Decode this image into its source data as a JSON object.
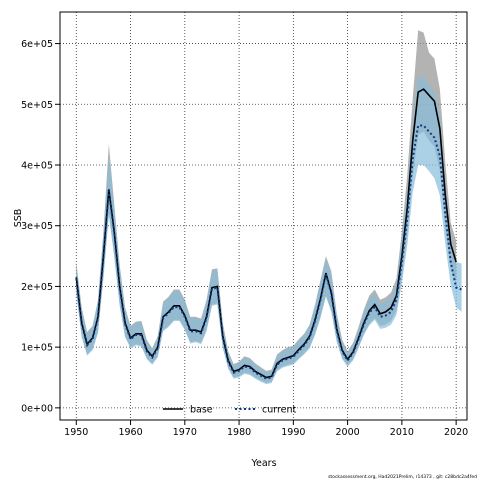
{
  "chart_data": {
    "type": "line",
    "xlabel": "Years",
    "ylabel": "SSB",
    "xlim": [
      1947,
      2022
    ],
    "ylim": [
      -20000,
      652000
    ],
    "x_ticks": [
      1950,
      1960,
      1970,
      1980,
      1990,
      2000,
      2010,
      2020
    ],
    "x_tick_labels": [
      "1950",
      "1960",
      "1970",
      "1980",
      "1990",
      "2000",
      "2010",
      "2020"
    ],
    "y_ticks": [
      0,
      100000,
      200000,
      300000,
      400000,
      500000,
      600000
    ],
    "y_tick_labels": [
      "0e+00",
      "1e+05",
      "2e+05",
      "3e+05",
      "4e+05",
      "5e+05",
      "6e+05"
    ],
    "grid": true,
    "legend_position": "bottom-center",
    "footer_text": "stockassessment.org, Had2021Prelim, r14373 ,  git: c28bdc2a4fed",
    "series": [
      {
        "name": "base",
        "color": "#000000",
        "line_style": "solid",
        "band_color": "#999999",
        "x": [
          1950,
          1951,
          1952,
          1953,
          1954,
          1955,
          1956,
          1957,
          1958,
          1959,
          1960,
          1961,
          1962,
          1963,
          1964,
          1965,
          1966,
          1967,
          1968,
          1969,
          1970,
          1971,
          1972,
          1973,
          1974,
          1975,
          1976,
          1977,
          1978,
          1979,
          1980,
          1981,
          1982,
          1983,
          1984,
          1985,
          1986,
          1987,
          1988,
          1989,
          1990,
          1991,
          1992,
          1993,
          1994,
          1995,
          1996,
          1997,
          1998,
          1999,
          2000,
          2001,
          2002,
          2003,
          2004,
          2005,
          2006,
          2007,
          2008,
          2009,
          2010,
          2011,
          2012,
          2013,
          2014,
          2015,
          2016,
          2017,
          2018,
          2019,
          2020
        ],
        "y": [
          215000,
          140000,
          105000,
          115000,
          150000,
          250000,
          360000,
          290000,
          200000,
          140000,
          115000,
          122000,
          122000,
          95000,
          85000,
          100000,
          150000,
          158000,
          168000,
          168000,
          152000,
          128000,
          128000,
          125000,
          150000,
          198000,
          200000,
          118000,
          78000,
          60000,
          63000,
          70000,
          68000,
          60000,
          55000,
          50000,
          52000,
          73000,
          80000,
          83000,
          86000,
          96000,
          105000,
          118000,
          145000,
          180000,
          222000,
          190000,
          130000,
          95000,
          80000,
          92000,
          115000,
          140000,
          160000,
          170000,
          155000,
          158000,
          165000,
          185000,
          250000,
          330000,
          440000,
          520000,
          525000,
          515000,
          505000,
          460000,
          350000,
          270000,
          240000
        ],
        "lower": [
          190000,
          118000,
          88000,
          97000,
          125000,
          215000,
          320000,
          250000,
          170000,
          118000,
          100000,
          105000,
          103000,
          82000,
          73000,
          85000,
          128000,
          135000,
          145000,
          145000,
          130000,
          108000,
          110000,
          107000,
          128000,
          170000,
          172000,
          100000,
          66000,
          50000,
          52000,
          58000,
          56000,
          50000,
          45000,
          41000,
          43000,
          62000,
          68000,
          71000,
          73000,
          82000,
          90000,
          100000,
          122000,
          150000,
          185000,
          160000,
          110000,
          82000,
          70000,
          80000,
          100000,
          122000,
          138000,
          148000,
          135000,
          137000,
          143000,
          160000,
          215000,
          285000,
          380000,
          450000,
          455000,
          440000,
          430000,
          390000,
          295000,
          228000,
          205000
        ],
        "upper": [
          240000,
          165000,
          125000,
          135000,
          178000,
          290000,
          435000,
          335000,
          235000,
          165000,
          135000,
          142000,
          143000,
          112000,
          98000,
          118000,
          175000,
          183000,
          195000,
          195000,
          178000,
          150000,
          150000,
          147000,
          178000,
          228000,
          230000,
          140000,
          93000,
          72000,
          76000,
          85000,
          82000,
          73000,
          67000,
          61000,
          63000,
          88000,
          95000,
          100000,
          102000,
          113000,
          122000,
          137000,
          170000,
          210000,
          250000,
          225000,
          155000,
          112000,
          93000,
          107000,
          133000,
          162000,
          185000,
          195000,
          178000,
          182000,
          190000,
          213000,
          290000,
          385000,
          510000,
          622000,
          618000,
          585000,
          575000,
          525000,
          405000,
          305000,
          275000
        ]
      },
      {
        "name": "current",
        "color": "#0f3a80",
        "line_style": "dotted",
        "band_color": "#87bedd",
        "x": [
          1950,
          1951,
          1952,
          1953,
          1954,
          1955,
          1956,
          1957,
          1958,
          1959,
          1960,
          1961,
          1962,
          1963,
          1964,
          1965,
          1966,
          1967,
          1968,
          1969,
          1970,
          1971,
          1972,
          1973,
          1974,
          1975,
          1976,
          1977,
          1978,
          1979,
          1980,
          1981,
          1982,
          1983,
          1984,
          1985,
          1986,
          1987,
          1988,
          1989,
          1990,
          1991,
          1992,
          1993,
          1994,
          1995,
          1996,
          1997,
          1998,
          1999,
          2000,
          2001,
          2002,
          2003,
          2004,
          2005,
          2006,
          2007,
          2008,
          2009,
          2010,
          2011,
          2012,
          2013,
          2014,
          2015,
          2016,
          2017,
          2018,
          2019,
          2020,
          2021
        ],
        "y": [
          213000,
          138000,
          103000,
          113000,
          148000,
          248000,
          358000,
          288000,
          198000,
          138000,
          113000,
          120000,
          120000,
          93000,
          83000,
          98000,
          148000,
          156000,
          166000,
          166000,
          150000,
          126000,
          126000,
          123000,
          148000,
          196000,
          198000,
          116000,
          76000,
          58000,
          61000,
          68000,
          66000,
          58000,
          53000,
          48000,
          50000,
          71000,
          78000,
          81000,
          84000,
          94000,
          103000,
          116000,
          143000,
          178000,
          220000,
          188000,
          128000,
          93000,
          78000,
          90000,
          113000,
          138000,
          157000,
          166000,
          150000,
          152000,
          158000,
          178000,
          240000,
          312000,
          410000,
          465000,
          465000,
          455000,
          445000,
          415000,
          320000,
          240000,
          198000,
          195000
        ],
        "lower": [
          188000,
          116000,
          86000,
          95000,
          123000,
          213000,
          318000,
          248000,
          168000,
          116000,
          98000,
          103000,
          101000,
          80000,
          71000,
          83000,
          126000,
          133000,
          143000,
          143000,
          128000,
          106000,
          108000,
          105000,
          126000,
          168000,
          170000,
          98000,
          64000,
          48000,
          50000,
          56000,
          54000,
          48000,
          43000,
          39000,
          41000,
          60000,
          66000,
          69000,
          71000,
          80000,
          88000,
          98000,
          120000,
          148000,
          183000,
          158000,
          108000,
          80000,
          68000,
          78000,
          98000,
          120000,
          136000,
          145000,
          130000,
          132000,
          137000,
          153000,
          205000,
          268000,
          355000,
          400000,
          400000,
          390000,
          378000,
          350000,
          270000,
          202000,
          165000,
          158000
        ],
        "upper": [
          238000,
          163000,
          123000,
          133000,
          176000,
          288000,
          420000,
          330000,
          232000,
          163000,
          133000,
          140000,
          141000,
          110000,
          96000,
          116000,
          172000,
          181000,
          193000,
          193000,
          175000,
          148000,
          148000,
          145000,
          175000,
          226000,
          228000,
          138000,
          91000,
          70000,
          74000,
          83000,
          80000,
          71000,
          65000,
          59000,
          61000,
          86000,
          93000,
          98000,
          100000,
          111000,
          120000,
          135000,
          168000,
          208000,
          245000,
          220000,
          152000,
          110000,
          91000,
          105000,
          130000,
          158000,
          180000,
          188000,
          172000,
          175000,
          182000,
          205000,
          278000,
          360000,
          470000,
          545000,
          545000,
          530000,
          520000,
          482000,
          372000,
          282000,
          240000,
          238000
        ]
      }
    ]
  }
}
